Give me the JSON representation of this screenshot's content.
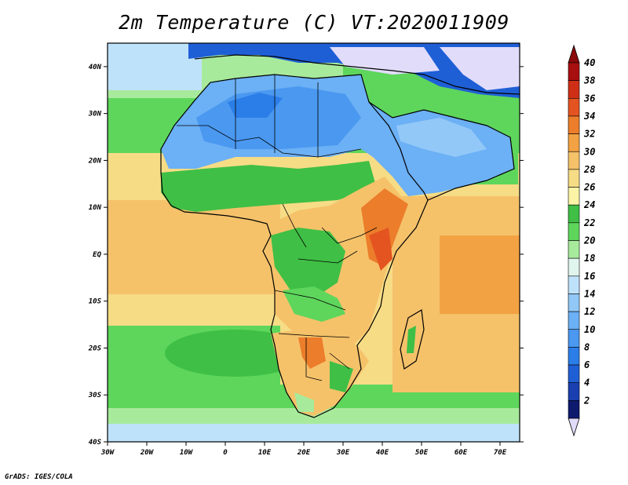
{
  "title": "2m Temperature (C) VT:2020011909",
  "credit": "GrADS: IGES/COLA",
  "map": {
    "lon_ticks": [
      "30W",
      "20W",
      "10W",
      "0",
      "10E",
      "20E",
      "30E",
      "40E",
      "50E",
      "60E",
      "70E"
    ],
    "lat_ticks": [
      "40N",
      "30N",
      "20N",
      "10N",
      "EQ",
      "10S",
      "20S",
      "30S",
      "40S"
    ],
    "lon_range": [
      -30,
      75
    ],
    "lat_range": [
      -40,
      45
    ]
  },
  "colorbar": {
    "labels": [
      "2",
      "4",
      "6",
      "8",
      "10",
      "12",
      "14",
      "16",
      "18",
      "20",
      "22",
      "24",
      "26",
      "28",
      "30",
      "32",
      "34",
      "36",
      "38",
      "40"
    ],
    "colors": [
      "#0e1a6e",
      "#1a3fb0",
      "#1f5fd6",
      "#2b7ee8",
      "#4a98f0",
      "#6cb0f5",
      "#92c8f8",
      "#bfe2fb",
      "#dff5ee",
      "#a8ea9c",
      "#5ed65c",
      "#3fbf45",
      "#fbf3a6",
      "#f7dc86",
      "#f5c26a",
      "#f3a243",
      "#ec7d2b",
      "#e45420",
      "#cf2f17",
      "#a80f0f"
    ],
    "below_color": "#e2dcfb",
    "above_color": "#8a0a0a"
  }
}
